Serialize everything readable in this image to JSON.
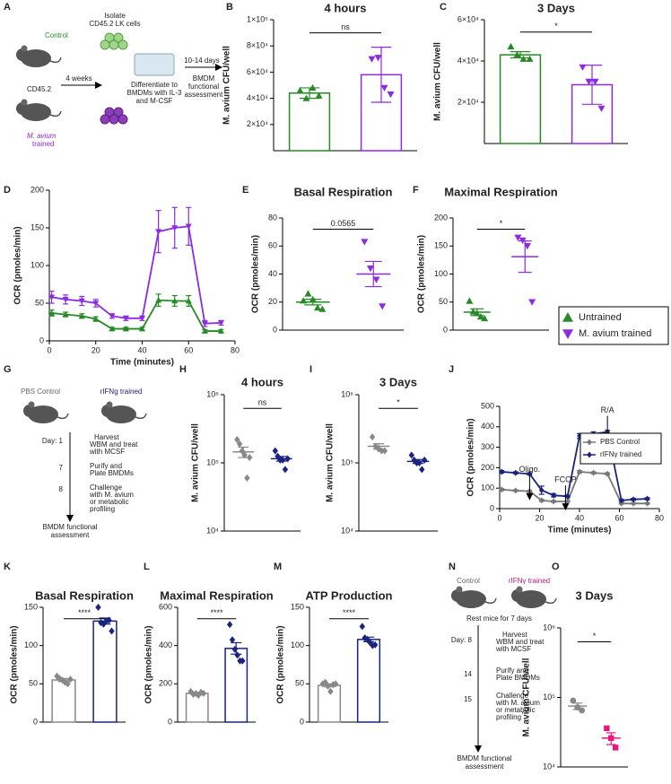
{
  "panel_labels": [
    "A",
    "B",
    "C",
    "D",
    "E",
    "F",
    "G",
    "H",
    "I",
    "J",
    "K",
    "L",
    "M",
    "N",
    "O"
  ],
  "diagram_a": {
    "control": "Control",
    "isolate": [
      "Isolate",
      "CD45.2 LK cells"
    ],
    "cd45": "CD45.2",
    "weeks": "4 weeks",
    "trained": [
      "M. avium",
      "trained"
    ],
    "differentiate": [
      "Differentiate to",
      "BMDMs with IL-3",
      "and M-CSF"
    ],
    "days": "10-14 days",
    "assessment": [
      "BMDM",
      "functional",
      "assessment"
    ]
  },
  "diagram_g": {
    "control": "PBS Control",
    "trained": "rIFNg trained",
    "steps": [
      {
        "day": "Day: 1",
        "text": [
          "Harvest",
          "WBM and treat",
          "with MCSF"
        ]
      },
      {
        "day": "7",
        "text": [
          "Purify and",
          "Plate BMDMs"
        ]
      },
      {
        "day": "8",
        "text": [
          "Challenge",
          "with M. avium",
          "or metabolic",
          "profiling"
        ]
      }
    ],
    "assessment": [
      "BMDM functional",
      "assessment"
    ]
  },
  "diagram_n": {
    "control": "Control",
    "trained": "rIFNγ trained",
    "rest": "Rest mice for 7 days",
    "steps": [
      {
        "day": "Day: 8",
        "text": [
          "Harvest",
          "WBM and treat",
          "with MCSF"
        ]
      },
      {
        "day": "14",
        "text": [
          "Purify and",
          "Plate BMDMs"
        ]
      },
      {
        "day": "15",
        "text": [
          "Challenge",
          "with M. avium",
          "or metabolic",
          "profiling"
        ]
      }
    ],
    "assessment": [
      "BMDM functional",
      "assessment"
    ]
  },
  "chart_data": [
    {
      "type": "bar",
      "title": "4 hours",
      "ylabel": "M. avium CFU/well",
      "ylim": [
        0,
        100000
      ],
      "yticks": [
        {
          "value": 20000,
          "label": "2×10⁴"
        },
        {
          "value": 40000,
          "label": "4×10⁴"
        },
        {
          "value": 60000,
          "label": "6×10⁴"
        },
        {
          "value": 80000,
          "label": "8×10⁴"
        },
        {
          "value": 100000,
          "label": "1×10⁵"
        }
      ],
      "annotation": "ns",
      "series": [
        {
          "color": "#268a26",
          "marker": "triangle",
          "value": 44000,
          "error": 4000,
          "points": [
            46000,
            40000,
            48000,
            42000
          ]
        },
        {
          "color": "#8b2be2",
          "marker": "triangle-down",
          "value": 58000,
          "error": 21000,
          "points": [
            70000,
            71000,
            48000,
            43000
          ]
        }
      ]
    },
    {
      "type": "bar",
      "title": "3 Days",
      "ylabel": "M. avium CFU/well",
      "ylim": [
        0,
        60000
      ],
      "yticks": [
        {
          "value": 20000,
          "label": "2×10⁴"
        },
        {
          "value": 40000,
          "label": "4×10⁴"
        },
        {
          "value": 60000,
          "label": "6×10⁴"
        }
      ],
      "annotation": "*",
      "series": [
        {
          "color": "#268a26",
          "marker": "triangle",
          "value": 43000,
          "error": 1500,
          "points": [
            47000,
            43000,
            41000,
            41000
          ]
        },
        {
          "color": "#8b2be2",
          "marker": "triangle-down",
          "value": 28500,
          "error": 9500,
          "points": [
            37000,
            30000,
            30000,
            17000
          ]
        }
      ]
    },
    {
      "type": "line",
      "ylabel": "OCR (pmoles/min)",
      "xlabel": "Time (minutes)",
      "xlim": [
        0,
        80
      ],
      "xticks": [
        0,
        20,
        40,
        60,
        80
      ],
      "ylim": [
        0,
        200
      ],
      "yticks": [
        0,
        50,
        100,
        150,
        200
      ],
      "legend": "outside-right",
      "x": [
        1,
        7,
        14,
        20,
        27,
        33,
        40,
        47,
        54,
        60,
        67,
        74
      ],
      "series": [
        {
          "name": "Untrained",
          "color": "#268a26",
          "marker": "triangle",
          "values": [
            37,
            35,
            33,
            29,
            16,
            16,
            16,
            54,
            53,
            53,
            13,
            13
          ],
          "errors": [
            4,
            3,
            3,
            3,
            2,
            2,
            2,
            8,
            7,
            7,
            2,
            2
          ]
        },
        {
          "name": "M. avium trained",
          "color": "#8b2be2",
          "marker": "triangle-down",
          "values": [
            58,
            55,
            53,
            50,
            33,
            30,
            30,
            145,
            150,
            152,
            23,
            24
          ],
          "errors": [
            8,
            6,
            6,
            5,
            3,
            3,
            3,
            28,
            27,
            25,
            4,
            3
          ]
        }
      ]
    },
    {
      "type": "scatter",
      "title": "Basal Respiration",
      "ylabel": "OCR (pmoles/min)",
      "ylim": [
        0,
        80
      ],
      "yticks": [
        0,
        20,
        40,
        60,
        80
      ],
      "annotation": "0.0565",
      "series": [
        {
          "color": "#268a26",
          "marker": "triangle",
          "value": 20,
          "error": 2,
          "points": [
            21,
            26,
            22,
            16,
            15
          ]
        },
        {
          "color": "#8b2be2",
          "marker": "triangle-down",
          "value": 40,
          "error": 9,
          "points": [
            63,
            44,
            36,
            17
          ]
        }
      ]
    },
    {
      "type": "scatter",
      "title": "Maximal Respiration",
      "ylabel": "OCR (pmoles/min)",
      "ylim": [
        0,
        200
      ],
      "yticks": [
        0,
        50,
        100,
        150,
        200
      ],
      "annotation": "*",
      "series": [
        {
          "color": "#268a26",
          "marker": "triangle",
          "value": 32,
          "error": 6,
          "points": [
            52,
            33,
            30,
            24,
            21
          ]
        },
        {
          "color": "#8b2be2",
          "marker": "triangle-down",
          "value": 131,
          "error": 28,
          "points": [
            165,
            160,
            150,
            50
          ]
        }
      ]
    },
    {
      "type": "scatter",
      "title": "4 hours",
      "ylabel": "M. avium CFU/well",
      "log": true,
      "ylim": [
        10000,
        1000000
      ],
      "yticks": [
        {
          "value": 10000,
          "label": "10⁴"
        },
        {
          "value": 100000,
          "label": "10⁵"
        },
        {
          "value": 1000000,
          "label": "10⁶"
        }
      ],
      "annotation": "ns",
      "series": [
        {
          "color": "#888888",
          "marker": "diamond",
          "value": 145000,
          "error": 25000,
          "points": [
            220000,
            190000,
            150000,
            130000,
            60000,
            120000
          ]
        },
        {
          "color": "#1a237e",
          "marker": "diamond",
          "value": 115000,
          "error": 9000,
          "points": [
            150000,
            125000,
            110000,
            110000,
            80000,
            115000
          ]
        }
      ]
    },
    {
      "type": "scatter",
      "title": "3 Days",
      "ylabel": "M. avium CFU/well",
      "log": true,
      "ylim": [
        10000,
        1000000
      ],
      "yticks": [
        {
          "value": 10000,
          "label": "10⁴"
        },
        {
          "value": 100000,
          "label": "10⁵"
        },
        {
          "value": 1000000,
          "label": "10⁶"
        }
      ],
      "annotation": "*",
      "series": [
        {
          "color": "#888888",
          "marker": "diamond",
          "value": 175000,
          "error": 16000,
          "points": [
            240000,
            175000,
            160000,
            150000,
            150000
          ]
        },
        {
          "color": "#1a237e",
          "marker": "diamond",
          "value": 105000,
          "error": 7000,
          "points": [
            130000,
            110000,
            100000,
            100000,
            80000,
            110000
          ]
        }
      ]
    },
    {
      "type": "line",
      "ylabel": "OCR (pmoles/min)",
      "xlabel": "Time (minutes)",
      "xlim": [
        0,
        80
      ],
      "xticks": [
        0,
        20,
        40,
        60,
        80
      ],
      "ylim": [
        0,
        500
      ],
      "yticks": [
        0,
        100,
        200,
        300,
        400,
        500
      ],
      "legend": "upper-right",
      "annotations": [
        {
          "label": "Oligo.",
          "x": 15
        },
        {
          "label": "FCCP",
          "x": 33
        },
        {
          "label": "R/A",
          "x": 54
        }
      ],
      "x": [
        1,
        8,
        15,
        21,
        27,
        34,
        40,
        47,
        54,
        61,
        67,
        74
      ],
      "series": [
        {
          "name": "PBS Control",
          "color": "#777777",
          "marker": "diamond",
          "values": [
            93,
            88,
            85,
            40,
            35,
            35,
            180,
            175,
            170,
            25,
            25,
            25
          ],
          "errors": [
            5,
            4,
            4,
            5,
            4,
            4,
            6,
            5,
            5,
            3,
            3,
            3
          ]
        },
        {
          "name": "rIFNγ trained",
          "color": "#1a237e",
          "marker": "diamond",
          "values": [
            180,
            175,
            170,
            90,
            65,
            60,
            355,
            365,
            375,
            40,
            45,
            48
          ],
          "errors": [
            6,
            5,
            5,
            20,
            8,
            6,
            12,
            10,
            8,
            5,
            5,
            5
          ]
        }
      ]
    },
    {
      "type": "bar",
      "title": "Basal Respiration",
      "ylabel": "OCR (pmoles/min)",
      "ylim": [
        0,
        150
      ],
      "yticks": [
        0,
        50,
        100,
        150
      ],
      "annotation": "****",
      "series": [
        {
          "color": "#888888",
          "marker": "diamond",
          "value": 55,
          "error": 2,
          "points": [
            60,
            57,
            55,
            52,
            50,
            56
          ]
        },
        {
          "color": "#1a237e",
          "marker": "diamond",
          "value": 132,
          "error": 4,
          "points": [
            150,
            130,
            128,
            132,
            133,
            119
          ]
        }
      ]
    },
    {
      "type": "bar",
      "title": "Maximal Respiration",
      "ylabel": "OCR (pmoles/min)",
      "ylim": [
        0,
        600
      ],
      "yticks": [
        0,
        200,
        400,
        600
      ],
      "annotation": "****",
      "series": [
        {
          "color": "#888888",
          "marker": "diamond",
          "value": 150,
          "error": 5,
          "points": [
            160,
            145,
            150,
            140,
            155,
            150
          ]
        },
        {
          "color": "#1a237e",
          "marker": "diamond",
          "value": 385,
          "error": 30,
          "points": [
            510,
            430,
            380,
            350,
            320,
            320
          ]
        }
      ]
    },
    {
      "type": "bar",
      "title": "ATP Production",
      "ylabel": "OCR (pmoles/min)",
      "ylim": [
        0,
        150
      ],
      "yticks": [
        0,
        50,
        100,
        150
      ],
      "annotation": "****",
      "series": [
        {
          "color": "#888888",
          "marker": "diamond",
          "value": 48,
          "error": 2,
          "points": [
            50,
            52,
            47,
            40,
            49,
            50
          ]
        },
        {
          "color": "#1a237e",
          "marker": "diamond",
          "value": 108,
          "error": 3,
          "points": [
            125,
            110,
            108,
            104,
            100,
            101
          ]
        }
      ]
    },
    {
      "type": "scatter",
      "title": "3 Days",
      "ylabel": "M. avium CFU/well",
      "log": true,
      "ylim": [
        10000,
        1000000
      ],
      "yticks": [
        {
          "value": 10000,
          "label": "10⁴"
        },
        {
          "value": 100000,
          "label": "10⁵"
        },
        {
          "value": 1000000,
          "label": "10⁶"
        }
      ],
      "annotation": "*",
      "series": [
        {
          "color": "#888888",
          "marker": "circle",
          "value": 75000,
          "error": 8000,
          "points": [
            90000,
            72000,
            65000
          ]
        },
        {
          "color": "#e8177d",
          "marker": "square",
          "value": 26000,
          "error": 5000,
          "points": [
            36000,
            26000,
            19000
          ]
        }
      ]
    }
  ]
}
